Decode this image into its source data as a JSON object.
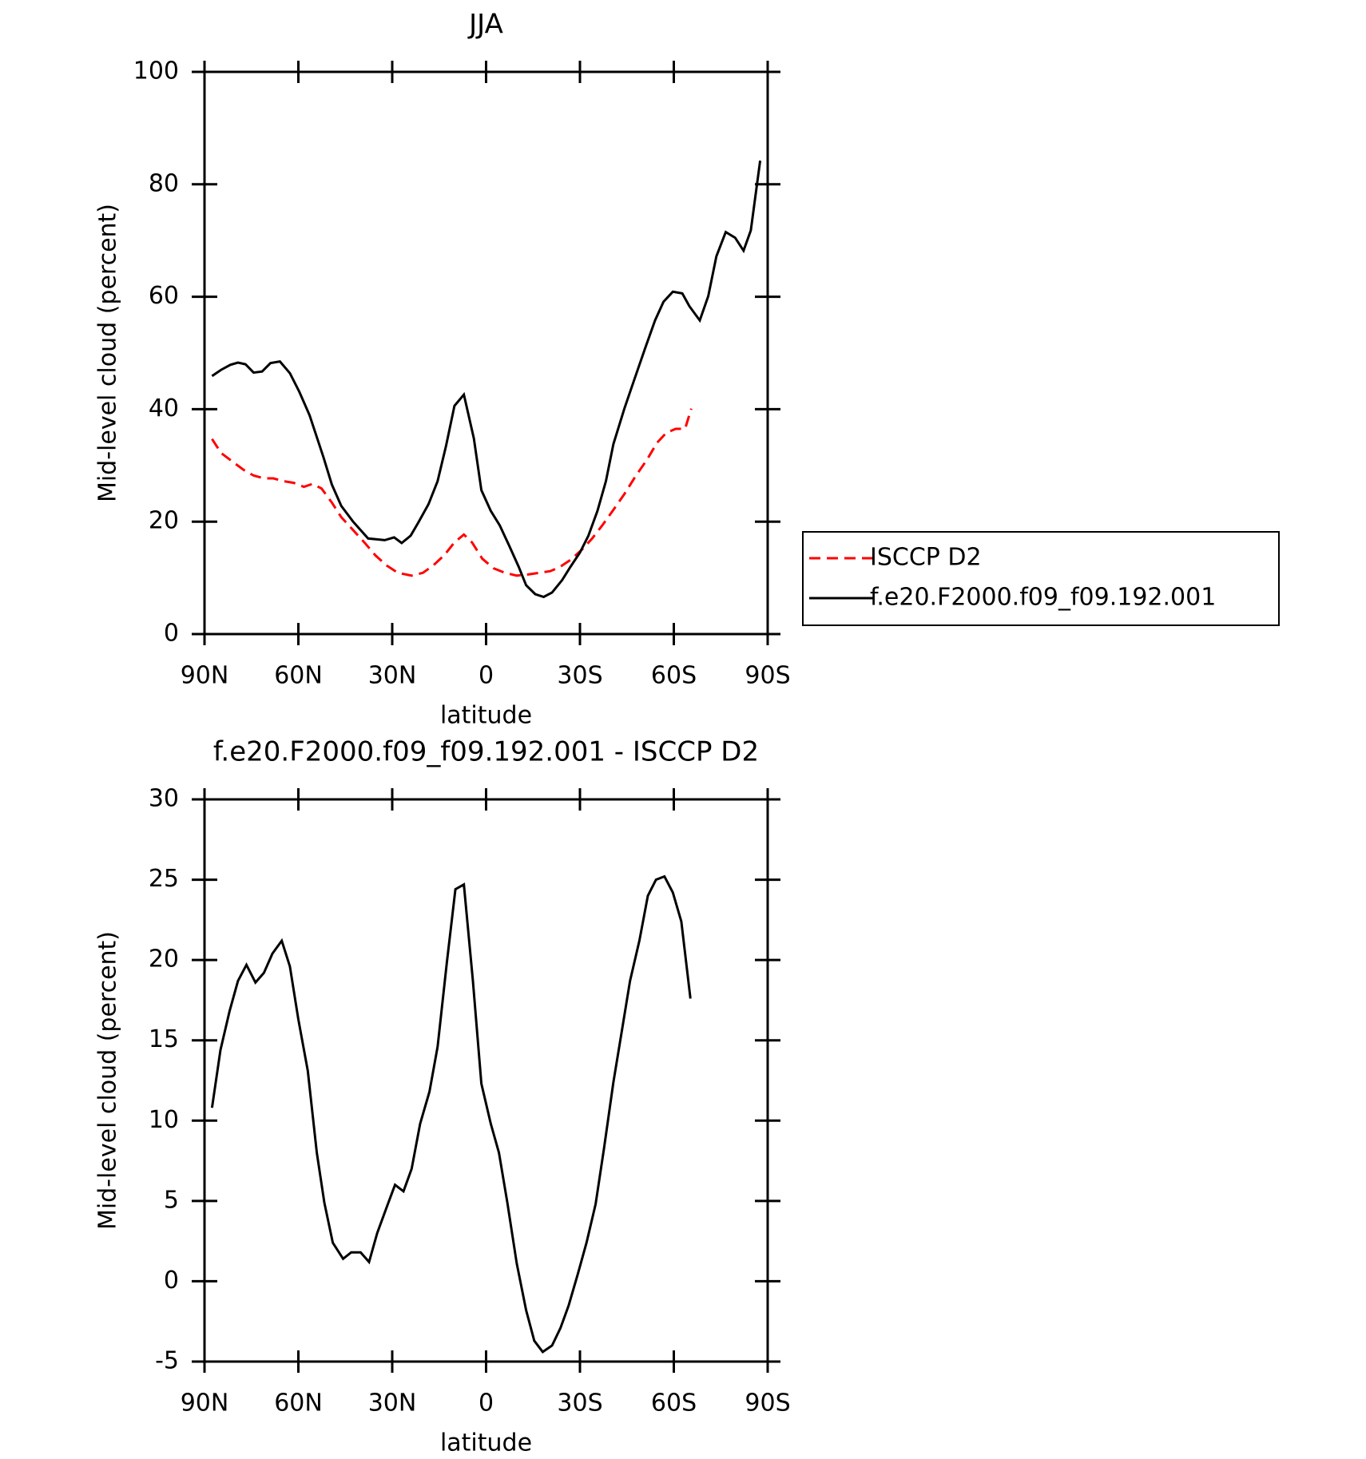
{
  "chart_data": [
    {
      "type": "line",
      "title": "JJA",
      "xlabel": "latitude",
      "ylabel": "Mid-level cloud (percent)",
      "xlim": [
        90,
        -90
      ],
      "xticks": [
        {
          "value": 90,
          "label": "90N"
        },
        {
          "value": 60,
          "label": "60N"
        },
        {
          "value": 30,
          "label": "30N"
        },
        0,
        {
          "value": -30,
          "label": "30S"
        },
        {
          "value": -60,
          "label": "60S"
        },
        {
          "value": -90,
          "label": "90S"
        }
      ],
      "ylim": [
        0,
        100
      ],
      "yticks": [
        0,
        20,
        40,
        60,
        80,
        100
      ],
      "legend": "right",
      "series": [
        {
          "name": "ISCCP D2",
          "color": "#ff0000",
          "linestyle": "dashed",
          "x": [
            87.6,
            84.7,
            81.1,
            77.5,
            74.3,
            71.0,
            68.0,
            64.8,
            61.5,
            58.2,
            55.5,
            52.6,
            49.3,
            46.3,
            42.5,
            38.9,
            35.4,
            31.8,
            28.2,
            23.8,
            20.2,
            16.9,
            13.4,
            10.1,
            7.1,
            4.5,
            1.2,
            -2.4,
            -6.0,
            -9.8,
            -13.4,
            -17.0,
            -20.5,
            -23.5,
            -27.0,
            -30.6,
            -33.9,
            -37.1,
            -40.7,
            -44.2,
            -47.8,
            -51.4,
            -54.6,
            -57.6,
            -60.6,
            -63.6,
            -65.6
          ],
          "values": [
            34.7,
            32.2,
            30.7,
            29.2,
            28.2,
            27.7,
            27.7,
            27.2,
            26.9,
            26.2,
            26.7,
            25.9,
            23.4,
            20.8,
            18.5,
            16.3,
            14.0,
            12.2,
            10.9,
            10.4,
            10.9,
            12.2,
            14.0,
            16.3,
            17.7,
            16.3,
            13.4,
            11.7,
            10.9,
            10.4,
            10.6,
            10.9,
            11.2,
            11.9,
            13.2,
            15.0,
            17.0,
            19.3,
            22.1,
            24.9,
            28.1,
            31.0,
            34.0,
            35.8,
            36.5,
            36.5,
            40.1
          ]
        },
        {
          "name": "f.e20.F2000.f09_f09.192.001",
          "color": "#000000",
          "linestyle": "solid",
          "x": [
            87.6,
            84.7,
            81.7,
            79.3,
            76.9,
            74.3,
            71.6,
            68.9,
            65.9,
            62.7,
            59.7,
            56.4,
            52.0,
            49.3,
            46.3,
            42.5,
            37.7,
            32.4,
            29.4,
            27.0,
            24.1,
            21.7,
            18.4,
            15.5,
            12.8,
            10.1,
            7.1,
            3.9,
            1.5,
            -1.5,
            -4.4,
            -7.4,
            -10.4,
            -12.8,
            -15.7,
            -18.4,
            -21.1,
            -24.3,
            -27.0,
            -30.0,
            -32.7,
            -35.6,
            -38.3,
            -40.7,
            -44.2,
            -47.2,
            -50.8,
            -54.0,
            -56.7,
            -59.7,
            -62.7,
            -65.0,
            -68.3,
            -71.0,
            -73.6,
            -76.6,
            -79.6,
            -82.3,
            -84.6,
            -87.6
          ],
          "values": [
            45.9,
            47.0,
            47.9,
            48.3,
            48.0,
            46.5,
            46.7,
            48.2,
            48.5,
            46.4,
            43.1,
            38.9,
            31.5,
            26.6,
            22.8,
            20.0,
            17.0,
            16.7,
            17.2,
            16.2,
            17.5,
            19.8,
            23.1,
            27.2,
            33.5,
            40.6,
            42.6,
            34.8,
            25.6,
            21.9,
            19.3,
            15.7,
            12.0,
            8.7,
            7.1,
            6.6,
            7.4,
            9.6,
            12.0,
            14.5,
            17.5,
            21.9,
            27.2,
            33.8,
            40.1,
            45.0,
            50.8,
            55.8,
            59.1,
            60.9,
            60.6,
            58.3,
            55.8,
            60.1,
            67.2,
            71.5,
            70.5,
            68.2,
            71.8,
            84.2
          ]
        }
      ]
    },
    {
      "type": "line",
      "title": "f.e20.F2000.f09_f09.192.001 - ISCCP D2",
      "xlabel": "latitude",
      "ylabel": "Mid-level cloud (percent)",
      "xlim": [
        90,
        -90
      ],
      "xticks": [
        {
          "value": 90,
          "label": "90N"
        },
        {
          "value": 60,
          "label": "60N"
        },
        {
          "value": 30,
          "label": "30N"
        },
        0,
        {
          "value": -30,
          "label": "30S"
        },
        {
          "value": -60,
          "label": "60S"
        },
        {
          "value": -90,
          "label": "90S"
        }
      ],
      "ylim": [
        -5,
        30
      ],
      "yticks": [
        -5,
        0,
        5,
        10,
        15,
        20,
        25,
        30
      ],
      "series": [
        {
          "color": "#000000",
          "linestyle": "solid",
          "x": [
            87.6,
            84.9,
            82.0,
            79.3,
            76.6,
            73.7,
            71.0,
            68.3,
            65.3,
            62.7,
            60.0,
            57.0,
            54.1,
            51.7,
            49.0,
            45.7,
            43.1,
            40.1,
            37.4,
            34.8,
            31.8,
            29.1,
            26.4,
            23.8,
            21.1,
            18.1,
            15.5,
            12.5,
            9.8,
            7.1,
            4.2,
            1.5,
            -1.5,
            -4.1,
            -6.8,
            -9.8,
            -12.8,
            -15.4,
            -18.1,
            -21.1,
            -23.8,
            -26.4,
            -29.4,
            -32.1,
            -35.0,
            -37.7,
            -40.7,
            -43.4,
            -46.0,
            -49.0,
            -51.7,
            -54.3,
            -57.0,
            -59.7,
            -62.4,
            -65.3
          ],
          "values": [
            10.8,
            14.4,
            16.8,
            18.7,
            19.7,
            18.6,
            19.2,
            20.4,
            21.2,
            19.6,
            16.3,
            13.1,
            8.0,
            4.9,
            2.4,
            1.4,
            1.8,
            1.8,
            1.2,
            3.0,
            4.6,
            6.0,
            5.6,
            7.0,
            9.8,
            11.8,
            14.6,
            19.9,
            24.4,
            24.7,
            18.7,
            12.3,
            9.8,
            8.0,
            4.9,
            1.1,
            -1.8,
            -3.7,
            -4.4,
            -4.0,
            -2.9,
            -1.5,
            0.5,
            2.4,
            4.8,
            8.3,
            12.4,
            15.6,
            18.7,
            21.2,
            24.0,
            25.0,
            25.2,
            24.2,
            22.4,
            17.6
          ]
        }
      ]
    }
  ]
}
